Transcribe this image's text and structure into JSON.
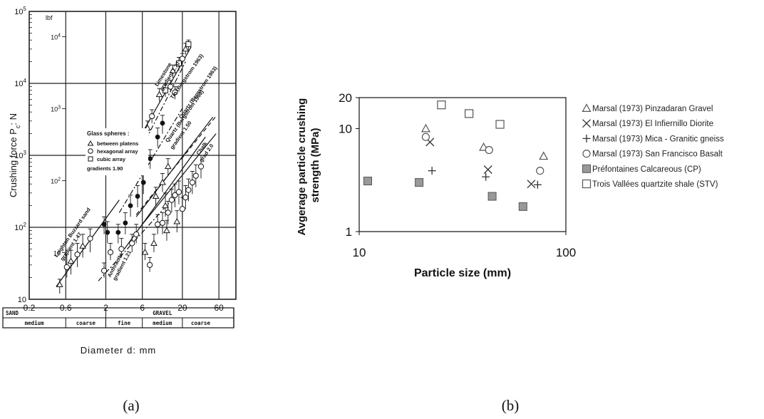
{
  "caption_a": "(a)",
  "caption_b": "(b)",
  "chart_data": [
    {
      "type": "scatter",
      "panel": "a",
      "log_x": true,
      "log_y": true,
      "xlim": [
        0.2,
        100
      ],
      "ylim": [
        10,
        100000
      ],
      "grid": true,
      "ylabel": "Crushing force P_c: N",
      "ylabel_parts": {
        "text": "Crushing force P",
        "sub": "c",
        "tail": ": N"
      },
      "xlabel": "Diameter d: mm",
      "y_ticks": [
        {
          "value": 100000,
          "label": "10",
          "sup": "5"
        },
        {
          "value": 10000,
          "label": "10",
          "sup": "4"
        },
        {
          "value": 1000,
          "label": "10",
          "sup": "3"
        },
        {
          "value": 100,
          "label": "10",
          "sup": "2"
        },
        {
          "value": 10,
          "label": "10",
          "sup": ""
        }
      ],
      "y_ticks_lbf": [
        {
          "value": 44482,
          "label": "10",
          "sup": "4"
        },
        {
          "value": 4448,
          "label": "10",
          "sup": "3"
        },
        {
          "value": 444.8,
          "label": "10",
          "sup": "2"
        },
        {
          "value": 44.48,
          "label": "10",
          "sup": ""
        }
      ],
      "lbf_unit": "lbf",
      "x_ticks": [
        {
          "value": 0.2,
          "label": "0.2"
        },
        {
          "value": 0.6,
          "label": "0.6"
        },
        {
          "value": 2,
          "label": "2"
        },
        {
          "value": 6,
          "label": "6"
        },
        {
          "value": 20,
          "label": "20"
        },
        {
          "value": 60,
          "label": "60"
        }
      ],
      "x_grid": [
        0.6,
        2,
        6,
        20,
        60
      ],
      "legend_title": "Glass spheres :",
      "legend_entries": [
        {
          "marker": "triangle",
          "label": "between platens"
        },
        {
          "marker": "circle",
          "label": "hexagonal array"
        },
        {
          "marker": "square",
          "label": "cubic array"
        }
      ],
      "legend_note": "gradients 1.90",
      "line_labels": [
        {
          "text": "Leighton Buzzard sand",
          "x": 0.46,
          "y": 38,
          "angle": -55
        },
        {
          "text": "gradient 1.47",
          "x": 0.55,
          "y": 34,
          "angle": -55
        },
        {
          "text": "Limestone",
          "x": 9.5,
          "y": 9000,
          "angle": -58
        },
        {
          "text": "gradient 1.70",
          "x": 11,
          "y": 7800,
          "angle": -58
        },
        {
          "text": "Tin (Bergstrom 1963)",
          "x": 15,
          "y": 6000,
          "angle": -55
        },
        {
          "text": "Quartz (Bergstrom 1963)",
          "x": 19.5,
          "y": 3200,
          "angle": -55
        },
        {
          "text": "Quartz (Bergstrom 1963)",
          "x": 13,
          "y": 1500,
          "angle": -55
        },
        {
          "text": "gradient 1.50",
          "x": 15,
          "y": 1200,
          "angle": -55
        },
        {
          "text": "Chalk",
          "x": 33,
          "y": 1000,
          "angle": -55
        },
        {
          "text": "grad 2.0",
          "x": 36,
          "y": 800,
          "angle": -55
        },
        {
          "text": "Anthracite",
          "x": 2.3,
          "y": 20,
          "angle": -62
        },
        {
          "text": "gradient 1.21",
          "x": 2.7,
          "y": 18,
          "angle": -62
        }
      ],
      "gradient_lines": [
        {
          "name": "Leighton Buzzard sand",
          "style": "solid",
          "x": [
            0.45,
            3
          ],
          "y": [
            15,
            240
          ]
        },
        {
          "name": "Glass spheres",
          "style": "solid",
          "x": [
            4.3,
            26
          ],
          "y": [
            1100,
            32000
          ]
        },
        {
          "name": "Glass spheres",
          "style": "dashdot",
          "x": [
            5,
            22
          ],
          "y": [
            900,
            20000
          ]
        },
        {
          "name": "Limestone",
          "style": "dashdot",
          "x": [
            3,
            20
          ],
          "y": [
            160,
            4500
          ]
        },
        {
          "name": "Tin (Bergstrom 1963)",
          "style": "solid",
          "x": [
            5,
            50
          ],
          "y": [
            140,
            3400
          ]
        },
        {
          "name": "Quartz (Bergstrom 1963)",
          "style": "dashed",
          "x": [
            5,
            55
          ],
          "y": [
            150,
            3500
          ]
        },
        {
          "name": "Quartz",
          "style": "solid",
          "x": [
            3.5,
            40
          ],
          "y": [
            50,
            1800
          ]
        },
        {
          "name": "Chalk",
          "style": "solid",
          "x": [
            6,
            55
          ],
          "y": [
            110,
            2000
          ]
        },
        {
          "name": "Anthracite",
          "style": "dashdot",
          "x": [
            1.6,
            14
          ],
          "y": [
            18,
            230
          ]
        }
      ],
      "points": [
        {
          "m": "tri",
          "x": 0.5,
          "y": 16,
          "lo": 12,
          "hi": 19
        },
        {
          "m": "circ",
          "x": 0.62,
          "y": 28,
          "lo": 20,
          "hi": 42
        },
        {
          "m": "tri",
          "x": 0.7,
          "y": 34,
          "lo": 22,
          "hi": 48
        },
        {
          "m": "circ",
          "x": 0.85,
          "y": 42,
          "lo": 28,
          "hi": 60
        },
        {
          "m": "tri",
          "x": 1.0,
          "y": 55,
          "lo": 38,
          "hi": 80
        },
        {
          "m": "circ",
          "x": 1.25,
          "y": 70,
          "lo": 45,
          "hi": 95
        },
        {
          "m": "dot",
          "x": 1.9,
          "y": 110,
          "lo": 80,
          "hi": 140
        },
        {
          "m": "dot",
          "x": 2.1,
          "y": 85,
          "lo": 60,
          "hi": 120
        },
        {
          "m": "circ",
          "x": 1.9,
          "y": 25,
          "lo": 20,
          "hi": 32
        },
        {
          "m": "circ",
          "x": 2.3,
          "y": 45,
          "lo": 35,
          "hi": 60
        },
        {
          "m": "dot",
          "x": 2.9,
          "y": 85,
          "lo": 60,
          "hi": 110
        },
        {
          "m": "dot",
          "x": 3.6,
          "y": 115,
          "lo": 80,
          "hi": 160
        },
        {
          "m": "circ",
          "x": 3.2,
          "y": 50,
          "lo": 38,
          "hi": 70
        },
        {
          "m": "dot",
          "x": 4.2,
          "y": 200,
          "lo": 140,
          "hi": 280
        },
        {
          "m": "dot",
          "x": 5.2,
          "y": 270,
          "lo": 190,
          "hi": 380
        },
        {
          "m": "circ",
          "x": 4.4,
          "y": 60,
          "lo": 45,
          "hi": 80
        },
        {
          "m": "circ",
          "x": 5.0,
          "y": 80,
          "lo": 60,
          "hi": 110
        },
        {
          "m": "dot",
          "x": 6.2,
          "y": 420,
          "lo": 290,
          "hi": 560
        },
        {
          "m": "dot",
          "x": 7.6,
          "y": 900,
          "lo": 650,
          "hi": 1200
        },
        {
          "m": "dot",
          "x": 9.5,
          "y": 1800,
          "lo": 1300,
          "hi": 2400
        },
        {
          "m": "dot",
          "x": 11,
          "y": 2800,
          "lo": 2000,
          "hi": 3600
        },
        {
          "m": "tri",
          "x": 4.4,
          "y": 1200,
          "lo": 900,
          "hi": 1500
        },
        {
          "m": "circ",
          "x": 4.6,
          "y": 850,
          "lo": 700,
          "hi": 1050
        },
        {
          "m": "tri",
          "x": 7,
          "y": 2400,
          "lo": 1900,
          "hi": 3000
        },
        {
          "m": "circ",
          "x": 8,
          "y": 3500,
          "lo": 2800,
          "hi": 4300
        },
        {
          "m": "tri",
          "x": 10,
          "y": 7000,
          "lo": 5600,
          "hi": 8500
        },
        {
          "m": "sq",
          "x": 12,
          "y": 8000,
          "lo": 6500,
          "hi": 9500
        },
        {
          "m": "circ",
          "x": 14,
          "y": 9000,
          "lo": 7500,
          "hi": 11000
        },
        {
          "m": "tri",
          "x": 15,
          "y": 15000,
          "lo": 12000,
          "hi": 18000
        },
        {
          "m": "sq",
          "x": 18,
          "y": 19000,
          "lo": 15000,
          "hi": 23000
        },
        {
          "m": "circ",
          "x": 20,
          "y": 22000,
          "lo": 18000,
          "hi": 26000
        },
        {
          "m": "tri",
          "x": 22,
          "y": 30000,
          "lo": 25000,
          "hi": 36000
        },
        {
          "m": "sq",
          "x": 24,
          "y": 35000,
          "lo": 29000,
          "hi": 40000
        },
        {
          "m": "circ",
          "x": 16,
          "y": 7500,
          "lo": 6000,
          "hi": 9000
        },
        {
          "m": "tri",
          "x": 6.5,
          "y": 45,
          "lo": 35,
          "hi": 60
        },
        {
          "m": "circ",
          "x": 7.5,
          "y": 30,
          "lo": 24,
          "hi": 38
        },
        {
          "m": "tri",
          "x": 8.5,
          "y": 60,
          "lo": 45,
          "hi": 80
        },
        {
          "m": "circ",
          "x": 9.5,
          "y": 110,
          "lo": 80,
          "hi": 150
        },
        {
          "m": "circ",
          "x": 11,
          "y": 115,
          "lo": 80,
          "hi": 160
        },
        {
          "m": "tri",
          "x": 12,
          "y": 200,
          "lo": 140,
          "hi": 300
        },
        {
          "m": "circ",
          "x": 13,
          "y": 160,
          "lo": 110,
          "hi": 230
        },
        {
          "m": "circ",
          "x": 14.5,
          "y": 240,
          "lo": 160,
          "hi": 340
        },
        {
          "m": "circ",
          "x": 16,
          "y": 280,
          "lo": 190,
          "hi": 400
        },
        {
          "m": "circ",
          "x": 18,
          "y": 310,
          "lo": 210,
          "hi": 440
        },
        {
          "m": "circ",
          "x": 20,
          "y": 180,
          "lo": 130,
          "hi": 260
        },
        {
          "m": "circ",
          "x": 22,
          "y": 260,
          "lo": 180,
          "hi": 380
        },
        {
          "m": "circ",
          "x": 24,
          "y": 330,
          "lo": 230,
          "hi": 470
        },
        {
          "m": "circ",
          "x": 27,
          "y": 420,
          "lo": 290,
          "hi": 600
        },
        {
          "m": "circ",
          "x": 30,
          "y": 520,
          "lo": 360,
          "hi": 740
        },
        {
          "m": "circ",
          "x": 35,
          "y": 700,
          "lo": 480,
          "hi": 1000
        },
        {
          "m": "tri",
          "x": 12.5,
          "y": 90,
          "lo": 65,
          "hi": 125
        },
        {
          "m": "tri",
          "x": 17,
          "y": 120,
          "lo": 85,
          "hi": 170
        },
        {
          "m": "tri",
          "x": 9,
          "y": 270,
          "lo": 200,
          "hi": 360
        },
        {
          "m": "tri",
          "x": 11,
          "y": 420,
          "lo": 310,
          "hi": 560
        },
        {
          "m": "tri",
          "x": 13,
          "y": 700,
          "lo": 520,
          "hi": 900
        }
      ],
      "table": {
        "row1": [
          {
            "label": "SAND",
            "x0": 0.2,
            "x1": 2
          },
          {
            "label": "GRAVEL",
            "x0": 2,
            "x1": 60
          }
        ],
        "row2": [
          {
            "label": "medium",
            "x0": 0.2,
            "x1": 0.6
          },
          {
            "label": "coarse",
            "x0": 0.6,
            "x1": 2
          },
          {
            "label": "fine",
            "x0": 2,
            "x1": 6
          },
          {
            "label": "medium",
            "x0": 6,
            "x1": 20
          },
          {
            "label": "coarse",
            "x0": 20,
            "x1": 60
          }
        ]
      }
    },
    {
      "type": "scatter",
      "panel": "b",
      "log_x": true,
      "log_y": true,
      "xlabel": "Particle size (mm)",
      "ylabel": "Avgerage particle crushing strength (MPa)",
      "ylabel_lines": [
        "Avgerage particle crushing",
        "strength (MPa)"
      ],
      "xlim": [
        10,
        100
      ],
      "ylim": [
        1,
        20
      ],
      "grid": false,
      "legend_position": "right",
      "x_ticks": [
        {
          "value": 10,
          "label": "10"
        },
        {
          "value": 100,
          "label": "100"
        }
      ],
      "y_ticks": [
        {
          "value": 1,
          "label": "1"
        },
        {
          "value": 10,
          "label": "10"
        },
        {
          "value": 20,
          "label": "20"
        }
      ],
      "series": [
        {
          "name": "Marsal (1973) Pinzadaran Gravel",
          "marker": "triangle-open",
          "color": "#555555",
          "x": [
            21,
            40,
            78
          ],
          "y": [
            10,
            6.6,
            5.4
          ]
        },
        {
          "name": "Marsal (1973) El Infiernillo Diorite",
          "marker": "x",
          "color": "#333333",
          "x": [
            22,
            42,
            68
          ],
          "y": [
            7.4,
            4.0,
            2.9
          ]
        },
        {
          "name": "Marsal (1973) Mica - Granitic gneiss",
          "marker": "plus",
          "color": "#333333",
          "x": [
            22.5,
            41,
            73
          ],
          "y": [
            3.9,
            3.4,
            2.85
          ]
        },
        {
          "name": "Marsal (1973) San Francisco Basalt",
          "marker": "circle-open",
          "color": "#555555",
          "x": [
            21,
            42.5,
            75
          ],
          "y": [
            8.3,
            6.2,
            3.9
          ]
        },
        {
          "name": "Préfontaines Calcareous (CP)",
          "marker": "square-filled",
          "color": "#999999",
          "x": [
            11,
            19.5,
            44,
            62
          ],
          "y": [
            3.1,
            3.0,
            2.2,
            1.75
          ]
        },
        {
          "name": "Trois Vallées quartzite shale (STV)",
          "marker": "square-open",
          "color": "#555555",
          "x": [
            25,
            34,
            48
          ],
          "y": [
            17,
            14,
            11
          ]
        }
      ]
    }
  ]
}
